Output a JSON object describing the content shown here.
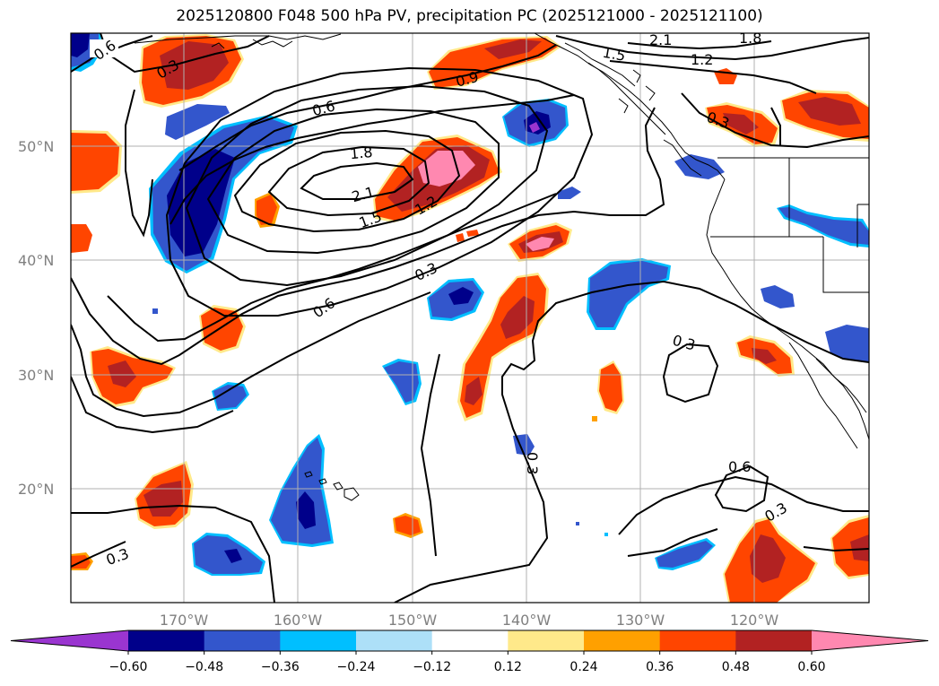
{
  "title": "2025120800 F048 500 hPa PV, precipitation PC (2025121000 - 2025121100)",
  "map": {
    "lat_labels": [
      "50°N",
      "40°N",
      "30°N",
      "20°N"
    ],
    "lon_labels": [
      "170°W",
      "160°W",
      "150°W",
      "140°W",
      "130°W",
      "120°W"
    ],
    "contour_labels": [
      "0.6",
      "0.3",
      "0.9",
      "0.6",
      "1.8",
      "2.1",
      "1.5",
      "1.2",
      "0.3",
      "0.6",
      "1.5",
      "2.1",
      "1.8",
      "1.2",
      "0.3",
      "0.3",
      "0.3",
      "0.6",
      "0.3",
      "0.3"
    ]
  },
  "colorbar": {
    "ticks": [
      "−0.60",
      "−0.48",
      "−0.36",
      "−0.24",
      "−0.12",
      "0.12",
      "0.24",
      "0.36",
      "0.48",
      "0.60"
    ],
    "colors": [
      "#9a35d0",
      "#00008a",
      "#3356cc",
      "#00bfff",
      "#ade0f8",
      "#ffffff",
      "#ffe98a",
      "#ffa000",
      "#ff4500",
      "#b22222",
      "#ff88b0"
    ]
  }
}
